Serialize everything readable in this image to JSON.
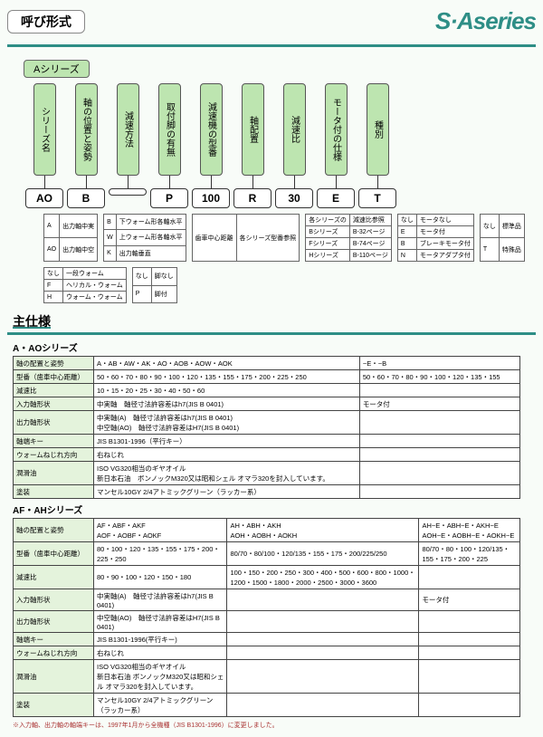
{
  "header": {
    "label": "呼び形式",
    "brand": "S·Aseries"
  },
  "series_tag": "Aシリーズ",
  "columns": [
    {
      "head": "シリーズ名",
      "code": "AO"
    },
    {
      "head": "軸の位置と姿勢",
      "code": "B"
    },
    {
      "head": "減速方法",
      "code": " "
    },
    {
      "head": "取付脚の有無",
      "code": "P"
    },
    {
      "head": "減速機の型番",
      "code": "100"
    },
    {
      "head": "軸配置",
      "code": "R"
    },
    {
      "head": "減速比",
      "code": "30"
    },
    {
      "head": "モータ付の仕様",
      "code": "E"
    },
    {
      "head": "種別",
      "code": "T"
    }
  ],
  "mini_tables": {
    "t1": [
      [
        "A",
        "出力軸中実"
      ],
      [
        "AO",
        "出力軸中空"
      ]
    ],
    "t2": [
      [
        "B",
        "下ウォーム形各軸水平"
      ],
      [
        "W",
        "上ウォーム形各軸水平"
      ],
      [
        "K",
        "出力軸垂直"
      ]
    ],
    "t3": [
      [
        "歯車中心距離",
        "各シリーズ型番参照"
      ]
    ],
    "t4": [
      [
        "各シリーズの",
        "減速比参照"
      ],
      [
        "Bシリーズ",
        "B-32ページ"
      ],
      [
        "Fシリーズ",
        "B-74ページ"
      ],
      [
        "Hシリーズ",
        "B-110ページ"
      ]
    ],
    "t5": [
      [
        "なし",
        "モータなし"
      ],
      [
        "E",
        "モータ付"
      ],
      [
        "B",
        "ブレーキモータ付"
      ],
      [
        "N",
        "モータアダプタ付"
      ]
    ],
    "t6": [
      [
        "なし",
        "標準品"
      ],
      [
        "T",
        "特殊品"
      ]
    ],
    "t7": [
      [
        "なし",
        "一段ウォーム"
      ],
      [
        "F",
        "ヘリカル・ウォーム"
      ],
      [
        "H",
        "ウォーム・ウォーム"
      ]
    ],
    "t8": [
      [
        "なし",
        "脚なし"
      ],
      [
        "P",
        "脚付"
      ]
    ]
  },
  "spec_title": "主仕様",
  "a_series": {
    "title": "A・AOシリーズ",
    "rows": [
      [
        "軸の配置と姿勢",
        "A・AB・AW・AK・AO・AOB・AOW・AOK",
        "−E・−B"
      ],
      [
        "型番（歯車中心距離）",
        "50・60・70・80・90・100・120・135・155・175・200・225・250",
        "50・60・70・80・90・100・120・135・155"
      ],
      [
        "減速比",
        "10・15・20・25・30・40・50・60",
        ""
      ],
      [
        "入力軸形状",
        "中実軸　軸径寸法許容差はh7(JIS B 0401)",
        "モータ付"
      ],
      [
        "出力軸形状",
        "中実軸(A)　軸径寸法許容差はh7(JIS B 0401)\n中空軸(AO)　軸径寸法許容差はH7(JIS B 0401)",
        ""
      ],
      [
        "軸端キー",
        "JIS B1301-1996（平行キー）",
        ""
      ],
      [
        "ウォームねじれ方向",
        "右ねじれ",
        ""
      ],
      [
        "潤滑油",
        "ISO VG320相当のギヤオイル\n新日本石油　ボンノックM320又は昭和シェル オマラ320を封入しています。",
        ""
      ],
      [
        "塗装",
        "マンセル10GY 2/4アトミックグリーン（ラッカー系）",
        ""
      ]
    ]
  },
  "af_series": {
    "title": "AF・AHシリーズ",
    "rows": [
      [
        "軸の配置と姿勢",
        "AF・ABF・AKF\nAOF・AOBF・AOKF",
        "AH・ABH・AKH\nAOH・AOBH・AOKH",
        "AH−E・ABH−E・AKH−E\nAOH−E・AOBH−E・AOKH−E"
      ],
      [
        "型番（歯車中心距離）",
        "80・100・120・135・155・175・200・225・250",
        "80/70・80/100・120/135・155・175・200/225/250",
        "80/70・80・100・120/135・155・175・200・225"
      ],
      [
        "減速比",
        "80・90・100・120・150・180",
        "100・150・200・250・300・400・500・600・800・1000・1200・1500・1800・2000・2500・3000・3600",
        ""
      ],
      [
        "入力軸形状",
        "中実軸(A)　軸径寸法許容差はh7(JIS B 0401)",
        "",
        "モータ付"
      ],
      [
        "出力軸形状",
        "中空軸(AO)　軸径寸法許容差はH7(JIS B 0401)",
        "",
        ""
      ],
      [
        "軸端キー",
        "JIS B1301-1996(平行キー)",
        "",
        ""
      ],
      [
        "ウォームねじれ方向",
        "右ねじれ",
        "",
        ""
      ],
      [
        "潤滑油",
        "ISO VG320相当のギヤオイル\n新日本石油 ボンノックM320又は昭和シェル オマラ320を封入しています。",
        "",
        ""
      ],
      [
        "塗装",
        "マンセル10GY 2/4アトミックグリーン（ラッカー系）",
        "",
        ""
      ]
    ]
  },
  "footnote": "※入力軸、出力軸の軸端キーは、1997年1月から全機種（JIS B1301-1996）に変更しました。"
}
